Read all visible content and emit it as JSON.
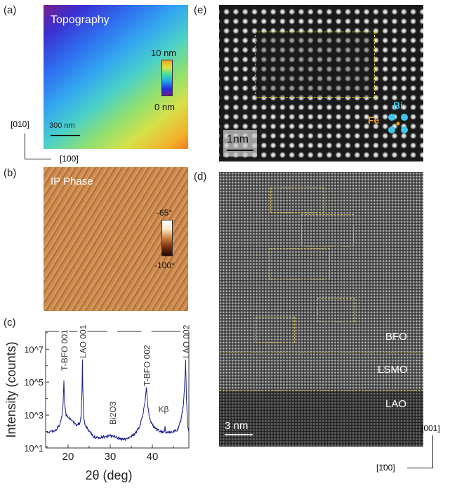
{
  "panels": {
    "a": {
      "label": "(a)",
      "title": "Topography",
      "cbar_max": "10 nm",
      "cbar_min": "0 nm",
      "scale": "300 nm",
      "axis_up": "[010]",
      "axis_right": "[100]"
    },
    "b": {
      "label": "(b)",
      "title": "IP Phase",
      "cbar_max": "-65°",
      "cbar_min": "-100°"
    },
    "c": {
      "label": "(c)"
    },
    "e": {
      "label": "(e)",
      "scale": "1nm",
      "atom_bi": "Bi",
      "atom_fe": "Fe",
      "colors": {
        "bi": "#3ec6e8",
        "fe": "#f0a020",
        "box": "#d8d020"
      }
    },
    "d": {
      "label": "(d)",
      "scale": "3 nm",
      "layer_bfo": "BFO",
      "layer_lsmo": "LSMO",
      "layer_lao": "LAO",
      "axis_up": "[001]",
      "axis_left": "[1̄00]"
    }
  },
  "chart_data": {
    "type": "line",
    "xlabel": "2θ (deg)",
    "ylabel": "Intensity (counts)",
    "xlim": [
      15,
      48.7
    ],
    "ylim": [
      10,
      120000000
    ],
    "yscale": "log",
    "xticks": [
      20,
      30,
      40
    ],
    "yticks": [
      10,
      1000,
      100000,
      10000000
    ],
    "ytick_labels": [
      "10^1",
      "10^3",
      "10^5",
      "10^7"
    ],
    "color": "#1a1f8a",
    "x": [
      15,
      16,
      17,
      18,
      18.5,
      18.8,
      19.0,
      19.2,
      19.5,
      20,
      21,
      22,
      22.8,
      23.1,
      23.3,
      23.4,
      23.5,
      23.7,
      24,
      25,
      26,
      27,
      28,
      29,
      30,
      31,
      32,
      33,
      34,
      35,
      36,
      37,
      37.8,
      38.3,
      38.6,
      38.9,
      39.3,
      40,
      41,
      42,
      42.8,
      43.0,
      43.2,
      44,
      45,
      46,
      46.8,
      47.4,
      47.8,
      47.9,
      48.1,
      48.4,
      48.7
    ],
    "y": [
      90,
      95,
      120,
      250,
      800,
      4000,
      120000,
      5000,
      1000,
      700,
      450,
      250,
      300,
      1000,
      30000,
      2000000,
      40000,
      800,
      250,
      110,
      50,
      40,
      45,
      50,
      55,
      50,
      40,
      35,
      35,
      50,
      80,
      200,
      1200,
      8000,
      50000,
      4000,
      700,
      250,
      130,
      100,
      90,
      180,
      90,
      90,
      100,
      130,
      500,
      5000,
      300000,
      2000000,
      10000,
      200,
      90
    ],
    "annotations": [
      {
        "text": "T-BFO 001",
        "x": 19.0
      },
      {
        "text": "LAO 001",
        "x": 23.4
      },
      {
        "text": "Bi2O3",
        "x": 30.5
      },
      {
        "text": "T-BFO 002",
        "x": 38.6
      },
      {
        "text": "Kβ",
        "x": 43.0
      },
      {
        "text": "LAO 002",
        "x": 47.9
      }
    ]
  }
}
